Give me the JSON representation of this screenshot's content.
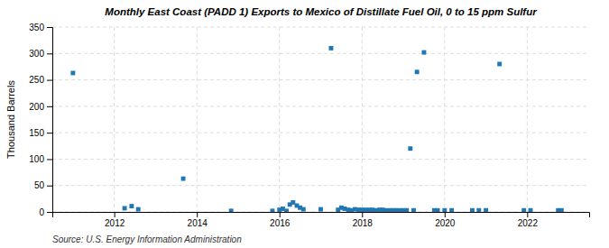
{
  "chart_data": {
    "type": "scatter",
    "title": "Monthly East Coast (PADD 1) Exports to Mexico of Distillate Fuel Oil, 0 to 15 ppm Sulfur",
    "ylabel": "Thousand Barrels",
    "source": "Source: U.S. Energy Information Administration",
    "marker": "square",
    "grid": true,
    "xlim": [
      2010.5,
      2023.5
    ],
    "xticks": [
      2012,
      2014,
      2016,
      2018,
      2020,
      2022
    ],
    "ylim": [
      0,
      350
    ],
    "yticks": [
      0,
      50,
      100,
      150,
      200,
      250,
      300,
      350
    ],
    "x": [
      2011.0,
      2012.25,
      2012.42,
      2012.58,
      2013.67,
      2014.83,
      2015.83,
      2016.0,
      2016.08,
      2016.17,
      2016.25,
      2016.33,
      2016.42,
      2016.5,
      2016.58,
      2017.0,
      2017.25,
      2017.42,
      2017.5,
      2017.58,
      2017.67,
      2017.75,
      2017.83,
      2017.92,
      2018.0,
      2018.08,
      2018.17,
      2018.25,
      2018.33,
      2018.42,
      2018.5,
      2018.58,
      2018.67,
      2018.75,
      2018.83,
      2018.92,
      2019.0,
      2019.08,
      2019.17,
      2019.25,
      2019.33,
      2019.5,
      2019.75,
      2019.83,
      2020.0,
      2020.17,
      2020.67,
      2020.83,
      2021.0,
      2021.33,
      2021.92,
      2022.08,
      2022.75,
      2022.83
    ],
    "values": [
      263,
      7,
      11,
      5,
      63,
      2,
      2,
      4,
      6,
      2,
      14,
      18,
      12,
      8,
      5,
      5,
      310,
      4,
      8,
      6,
      4,
      3,
      5,
      4,
      4,
      4,
      4,
      4,
      3,
      4,
      4,
      3,
      3,
      3,
      3,
      3,
      3,
      3,
      120,
      3,
      265,
      302,
      3,
      3,
      3,
      3,
      3,
      3,
      3,
      280,
      3,
      3,
      3,
      3
    ]
  }
}
